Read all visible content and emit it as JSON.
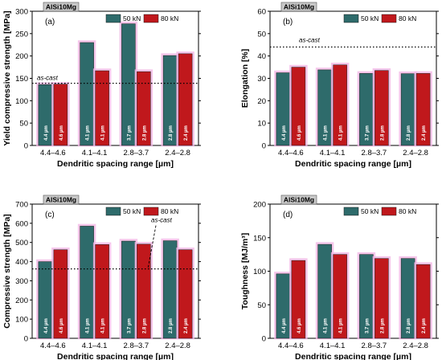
{
  "chart_data": [
    {
      "type": "bar",
      "tag": "AlSi10Mg",
      "panel": "(a)",
      "ylabel": "Yield compressive strength [MPa]",
      "xlabel": "Dendritic spacing range [µm]",
      "ylim": [
        0,
        300
      ],
      "yticks": [
        0,
        50,
        100,
        150,
        200,
        250,
        300
      ],
      "categories": [
        "4.4–4.6",
        "4.1–4.1",
        "2.8–3.7",
        "2.4–2.8"
      ],
      "series": [
        {
          "name": "50 kN",
          "color": "#2e6b6b",
          "values": [
            136,
            230,
            272,
            201
          ],
          "labels": [
            "4.4 µm",
            "4.1 µm",
            "3.7 µm",
            "2.8 µm"
          ]
        },
        {
          "name": "80 kN",
          "color": "#c0181c",
          "values": [
            137,
            167,
            165,
            205
          ],
          "labels": [
            "4.6 µm",
            "4.1 µm",
            "2.8 µm",
            "2.4 µm"
          ]
        }
      ],
      "reference": {
        "label": "as-cast",
        "value": 139
      }
    },
    {
      "type": "bar",
      "tag": "AlSi10Mg",
      "panel": "(b)",
      "ylabel": "Elongation [%]",
      "xlabel": "Dendritic spacing range [µm]",
      "ylim": [
        0,
        60
      ],
      "yticks": [
        0,
        10,
        20,
        30,
        40,
        50,
        60
      ],
      "categories": [
        "4.4–4.6",
        "4.1–4.1",
        "2.8–3.7",
        "2.4–2.8"
      ],
      "series": [
        {
          "name": "50 kN",
          "color": "#2e6b6b",
          "values": [
            32.5,
            33.8,
            32.2,
            32.1
          ],
          "labels": [
            "4.4 µm",
            "4.1 µm",
            "3.7 µm",
            "2.8 µm"
          ]
        },
        {
          "name": "80 kN",
          "color": "#c0181c",
          "values": [
            35.0,
            36.0,
            33.5,
            32.2
          ],
          "labels": [
            "4.6 µm",
            "4.1 µm",
            "2.8 µm",
            "2.4 µm"
          ]
        }
      ],
      "reference": {
        "label": "as-cast",
        "value": 44
      }
    },
    {
      "type": "bar",
      "tag": "AlSi10Mg",
      "panel": "(c)",
      "ylabel": "Compressive strength [MPa]",
      "xlabel": "Dendritic spacing range [µm]",
      "ylim": [
        0,
        700
      ],
      "yticks": [
        0,
        100,
        200,
        300,
        400,
        500,
        600,
        700
      ],
      "categories": [
        "4.4–4.6",
        "4.1–4.1",
        "2.8–3.7",
        "2.4–2.8"
      ],
      "series": [
        {
          "name": "50 kN",
          "color": "#2e6b6b",
          "values": [
            400,
            585,
            507,
            509
          ],
          "labels": [
            "4.4 µm",
            "4.1 µm",
            "3.7 µm",
            "2.8 µm"
          ]
        },
        {
          "name": "80 kN",
          "color": "#c0181c",
          "values": [
            462,
            489,
            491,
            462
          ],
          "labels": [
            "4.6 µm",
            "4.1 µm",
            "2.8 µm",
            "2.4 µm"
          ]
        }
      ],
      "reference": {
        "label": "as-cast",
        "value": 362
      }
    },
    {
      "type": "bar",
      "tag": "AlSi10Mg",
      "panel": "(d)",
      "ylabel": "Toughness [MJ/m³]",
      "xlabel": "Dendritic spacing range [µm]",
      "ylim": [
        0,
        200
      ],
      "yticks": [
        0,
        50,
        100,
        150,
        200
      ],
      "categories": [
        "4.4–4.6",
        "4.1–4.1",
        "2.8–3.7",
        "2.4–2.8"
      ],
      "series": [
        {
          "name": "50 kN",
          "color": "#2e6b6b",
          "values": [
            96,
            140,
            125,
            119
          ],
          "labels": [
            "4.4 µm",
            "4.1 µm",
            "3.7 µm",
            "2.8 µm"
          ]
        },
        {
          "name": "80 kN",
          "color": "#c0181c",
          "values": [
            116,
            125,
            119,
            110
          ],
          "labels": [
            "4.6 µm",
            "4.1 µm",
            "2.8 µm",
            "2.4 µm"
          ]
        }
      ]
    }
  ]
}
